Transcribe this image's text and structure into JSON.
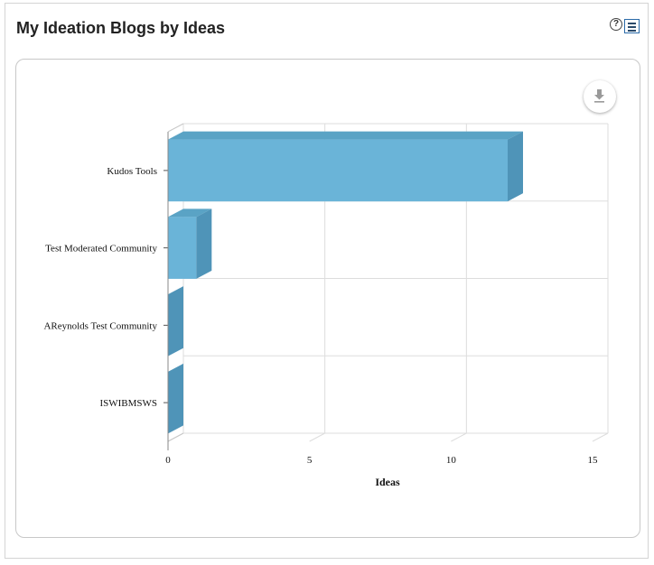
{
  "widget": {
    "title": "My Ideation Blogs by Ideas",
    "help_glyph": "?",
    "icons": [
      "help-icon",
      "menu-icon",
      "download-icon"
    ]
  },
  "chart_data": {
    "type": "bar",
    "orientation": "horizontal",
    "three_d": true,
    "categories": [
      "Kudos Tools",
      "Test Moderated Community",
      "AReynolds Test Community",
      "ISWIBMSWS"
    ],
    "values": [
      12,
      1,
      0,
      0
    ],
    "xlabel": "Ideas",
    "ylabel": "",
    "xlim": [
      0,
      15
    ],
    "x_ticks": [
      "0",
      "5",
      "10",
      "15"
    ],
    "grid": true,
    "legend": "none",
    "colors": {
      "bar_front": "#6ab4d8",
      "bar_top": "#5aa3c5",
      "bar_side": "#4f94b8",
      "grid": "#dddddd"
    }
  }
}
